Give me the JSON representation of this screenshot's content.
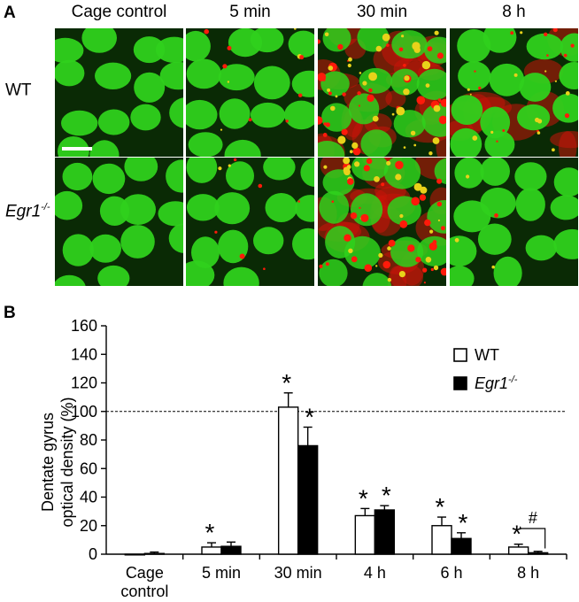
{
  "panel_a": {
    "letter": "A",
    "columns": [
      "Cage control",
      "5 min",
      "30 min",
      "8 h"
    ],
    "rows": [
      {
        "label": "WT",
        "sup": ""
      },
      {
        "label": "Egr1",
        "sup": "-/-"
      }
    ],
    "red_signal_level": [
      [
        0.0,
        0.15,
        0.9,
        0.35
      ],
      [
        0.0,
        0.12,
        0.8,
        0.05
      ]
    ],
    "colors": {
      "nuclei": "#2fd11c",
      "signal": "#ff1a0a",
      "background": "#0a2a05"
    }
  },
  "panel_b": {
    "letter": "B",
    "legend": [
      {
        "label": "WT",
        "sup": ""
      },
      {
        "label": "Egr1",
        "sup": "-/-"
      }
    ],
    "annotation_hash": "#",
    "significance_marker": "*"
  },
  "chart_data": {
    "type": "bar",
    "ylabel_line1": "Dentate gyrus",
    "ylabel_line2": "optical density (%)",
    "ylim": [
      0,
      160
    ],
    "yticks": [
      "0",
      "20",
      "40",
      "60",
      "80",
      "100",
      "120",
      "140",
      "160"
    ],
    "reference_line": 100,
    "categories": [
      {
        "line1": "Cage",
        "line2": "control"
      },
      {
        "line1": "5 min",
        "line2": ""
      },
      {
        "line1": "30 min",
        "line2": ""
      },
      {
        "line1": "4 h",
        "line2": ""
      },
      {
        "line1": "6 h",
        "line2": ""
      },
      {
        "line1": "8 h",
        "line2": ""
      }
    ],
    "series": [
      {
        "name": "WT",
        "fill": "#ffffff",
        "values": [
          0,
          5,
          103,
          27,
          20,
          5
        ],
        "errors": [
          0,
          3,
          10,
          5,
          6,
          2
        ],
        "star": [
          false,
          true,
          true,
          true,
          true,
          true
        ]
      },
      {
        "name": "Egr1-/-",
        "fill": "#000000",
        "values": [
          0.5,
          5.5,
          76,
          31,
          11,
          1
        ],
        "errors": [
          1,
          3,
          13,
          3,
          4,
          1
        ],
        "star": [
          false,
          false,
          true,
          true,
          true,
          false
        ]
      }
    ],
    "bracket_category": 5
  }
}
